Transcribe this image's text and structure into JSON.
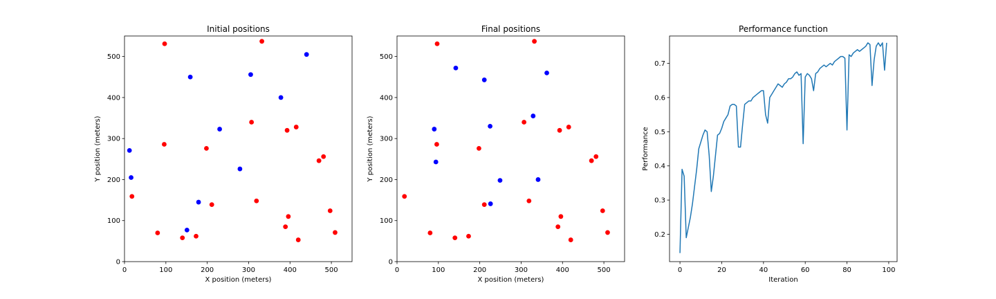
{
  "chart_data": [
    {
      "type": "scatter",
      "title": "Initial positions",
      "xlabel": "X position (meters)",
      "ylabel": "Y position (meters)",
      "xlim": [
        0,
        550
      ],
      "ylim": [
        0,
        550
      ],
      "xticks": [
        0,
        100,
        200,
        300,
        400,
        500
      ],
      "yticks": [
        0,
        100,
        200,
        300,
        400,
        500
      ],
      "grid": false,
      "series": [
        {
          "color": "#ff0000",
          "points": [
            [
              97,
              531
            ],
            [
              332,
              537
            ],
            [
              307,
              340
            ],
            [
              415,
              328
            ],
            [
              393,
              320
            ],
            [
              96,
              286
            ],
            [
              198,
              276
            ],
            [
              481,
              256
            ],
            [
              470,
              246
            ],
            [
              18,
              159
            ],
            [
              319,
              148
            ],
            [
              211,
              139
            ],
            [
              497,
              124
            ],
            [
              396,
              110
            ],
            [
              389,
              85
            ],
            [
              80,
              70
            ],
            [
              509,
              71
            ],
            [
              173,
              62
            ],
            [
              140,
              58
            ],
            [
              420,
              53
            ]
          ]
        },
        {
          "color": "#0000ff",
          "points": [
            [
              440,
              505
            ],
            [
              159,
              450
            ],
            [
              305,
              456
            ],
            [
              378,
              400
            ],
            [
              230,
              323
            ],
            [
              12,
              271
            ],
            [
              279,
              226
            ],
            [
              16,
              205
            ],
            [
              179,
              145
            ],
            [
              151,
              77
            ]
          ]
        }
      ]
    },
    {
      "type": "scatter",
      "title": "Final positions",
      "xlabel": "X position (meters)",
      "ylabel": "Y position (meters)",
      "xlim": [
        0,
        550
      ],
      "ylim": [
        0,
        550
      ],
      "xticks": [
        0,
        100,
        200,
        300,
        400,
        500
      ],
      "yticks": [
        0,
        100,
        200,
        300,
        400,
        500
      ],
      "grid": false,
      "series": [
        {
          "color": "#ff0000",
          "points": [
            [
              97,
              531
            ],
            [
              332,
              537
            ],
            [
              307,
              340
            ],
            [
              415,
              328
            ],
            [
              393,
              320
            ],
            [
              96,
              286
            ],
            [
              198,
              276
            ],
            [
              481,
              256
            ],
            [
              470,
              246
            ],
            [
              18,
              159
            ],
            [
              319,
              148
            ],
            [
              211,
              139
            ],
            [
              497,
              124
            ],
            [
              396,
              110
            ],
            [
              389,
              85
            ],
            [
              80,
              70
            ],
            [
              509,
              71
            ],
            [
              173,
              62
            ],
            [
              140,
              58
            ],
            [
              420,
              53
            ]
          ]
        },
        {
          "color": "#0000ff",
          "points": [
            [
              142,
              472
            ],
            [
              211,
              443
            ],
            [
              362,
              460
            ],
            [
              329,
              355
            ],
            [
              225,
              330
            ],
            [
              90,
              323
            ],
            [
              94,
              243
            ],
            [
              249,
              198
            ],
            [
              341,
              200
            ],
            [
              226,
              141
            ]
          ]
        }
      ]
    },
    {
      "type": "line",
      "title": "Performance function",
      "xlabel": "Iteration",
      "ylabel": "Performance",
      "xlim": [
        -5,
        104
      ],
      "ylim": [
        0.12,
        0.78
      ],
      "xticks": [
        0,
        20,
        40,
        60,
        80,
        100
      ],
      "yticks": [
        0.2,
        0.3,
        0.4,
        0.5,
        0.6,
        0.7
      ],
      "grid": false,
      "series": [
        {
          "color": "#1f77b4",
          "x": [
            0,
            1,
            2,
            3,
            4,
            5,
            6,
            7,
            8,
            9,
            10,
            11,
            12,
            13,
            14,
            15,
            16,
            17,
            18,
            19,
            20,
            21,
            22,
            23,
            24,
            25,
            26,
            27,
            28,
            29,
            30,
            31,
            32,
            33,
            34,
            35,
            36,
            37,
            38,
            39,
            40,
            41,
            42,
            43,
            44,
            45,
            46,
            47,
            48,
            49,
            50,
            51,
            52,
            53,
            54,
            55,
            56,
            57,
            58,
            59,
            60,
            61,
            62,
            63,
            64,
            65,
            66,
            67,
            68,
            69,
            70,
            71,
            72,
            73,
            74,
            75,
            76,
            77,
            78,
            79,
            80,
            81,
            82,
            83,
            84,
            85,
            86,
            87,
            88,
            89,
            90,
            91,
            92,
            93,
            94,
            95,
            96,
            97,
            98,
            99
          ],
          "values": [
            0.145,
            0.39,
            0.37,
            0.19,
            0.22,
            0.25,
            0.29,
            0.34,
            0.39,
            0.45,
            0.47,
            0.49,
            0.505,
            0.5,
            0.43,
            0.325,
            0.37,
            0.43,
            0.49,
            0.495,
            0.51,
            0.53,
            0.54,
            0.55,
            0.575,
            0.58,
            0.58,
            0.575,
            0.455,
            0.455,
            0.52,
            0.58,
            0.585,
            0.59,
            0.59,
            0.6,
            0.605,
            0.61,
            0.615,
            0.62,
            0.62,
            0.55,
            0.525,
            0.6,
            0.61,
            0.62,
            0.63,
            0.64,
            0.635,
            0.63,
            0.64,
            0.645,
            0.655,
            0.655,
            0.66,
            0.67,
            0.675,
            0.665,
            0.67,
            0.465,
            0.66,
            0.67,
            0.665,
            0.655,
            0.62,
            0.67,
            0.675,
            0.685,
            0.69,
            0.695,
            0.69,
            0.695,
            0.7,
            0.695,
            0.705,
            0.71,
            0.715,
            0.72,
            0.72,
            0.715,
            0.505,
            0.725,
            0.72,
            0.73,
            0.735,
            0.74,
            0.735,
            0.74,
            0.745,
            0.75,
            0.76,
            0.755,
            0.635,
            0.71,
            0.75,
            0.76,
            0.75,
            0.76,
            0.68,
            0.76
          ]
        }
      ]
    }
  ]
}
